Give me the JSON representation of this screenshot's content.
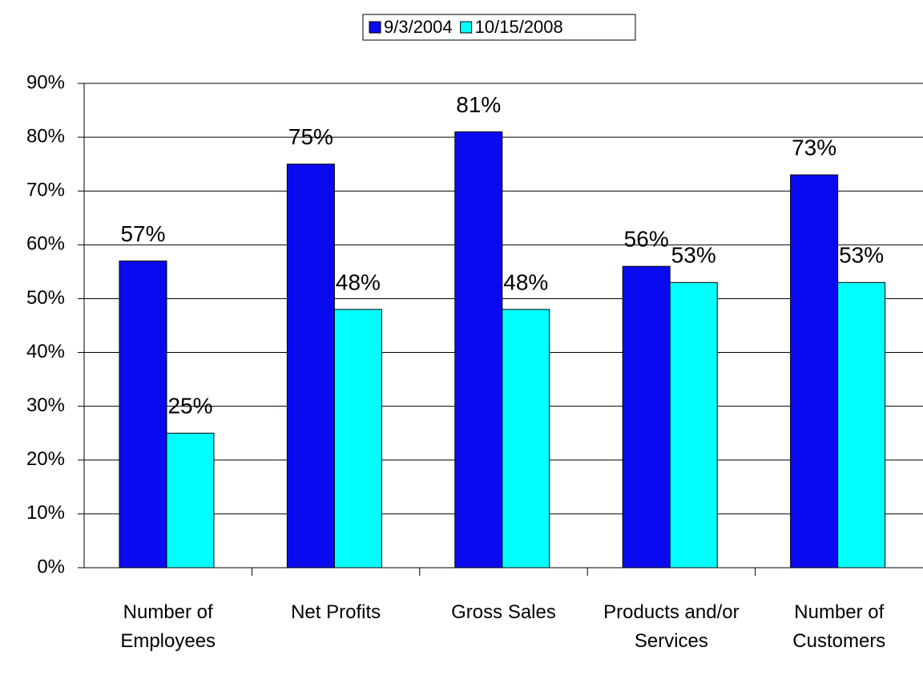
{
  "chart_data": {
    "type": "bar",
    "categories": [
      "Number of Employees",
      "Net Profits",
      "Gross Sales",
      "Products and/or Services",
      "Number of Customers"
    ],
    "series": [
      {
        "name": "9/3/2004",
        "color": "#0a0af0",
        "values": [
          57,
          75,
          81,
          56,
          73
        ],
        "value_labels": [
          "57%",
          "75%",
          "81%",
          "56%",
          "73%"
        ]
      },
      {
        "name": "10/15/2008",
        "color": "#00ffff",
        "values": [
          25,
          48,
          48,
          53,
          53
        ],
        "value_labels": [
          "25%",
          "48%",
          "48%",
          "53%",
          "53%"
        ]
      }
    ],
    "ylim": [
      0,
      90
    ],
    "yticks": [
      {
        "value": 0,
        "label": "0%"
      },
      {
        "value": 10,
        "label": "10%"
      },
      {
        "value": 20,
        "label": "20%"
      },
      {
        "value": 30,
        "label": "30%"
      },
      {
        "value": 40,
        "label": "40%"
      },
      {
        "value": 50,
        "label": "50%"
      },
      {
        "value": 60,
        "label": "60%"
      },
      {
        "value": 70,
        "label": "70%"
      },
      {
        "value": 80,
        "label": "80%"
      },
      {
        "value": 90,
        "label": "90%"
      }
    ],
    "grid": true,
    "legend": "top"
  }
}
